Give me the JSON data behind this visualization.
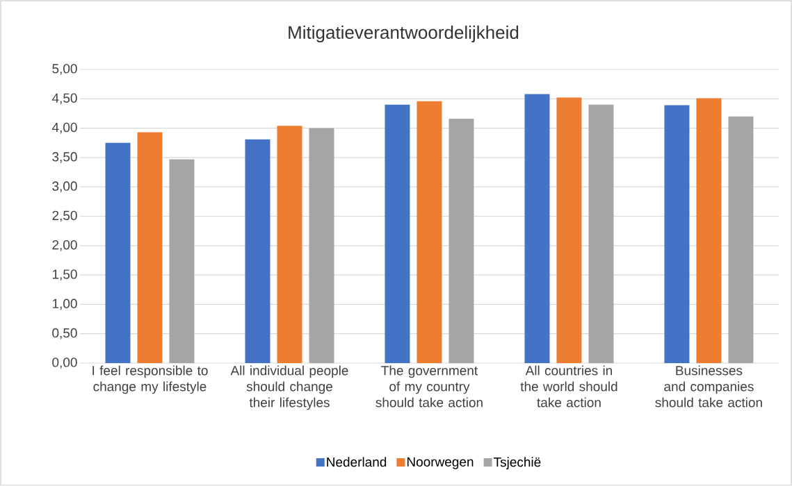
{
  "chart_data": {
    "type": "bar",
    "title": "Mitigatieverantwoordelijkheid",
    "categories": [
      "I feel responsible to change my lifestyle",
      "All individual people should change their lifestyles",
      "The government of my country should take action",
      "All countries in the world should take action",
      "Businesses and companies should take action"
    ],
    "series": [
      {
        "name": "Nederland",
        "color": "#4472c4",
        "values": [
          3.75,
          3.81,
          4.4,
          4.58,
          4.39
        ]
      },
      {
        "name": "Noorwegen",
        "color": "#ed7d31",
        "values": [
          3.93,
          4.04,
          4.46,
          4.52,
          4.51
        ]
      },
      {
        "name": "Tsjechië",
        "color": "#a5a5a5",
        "values": [
          3.47,
          4.0,
          4.16,
          4.4,
          4.2
        ]
      }
    ],
    "ylim": [
      0,
      5
    ],
    "yticks": [
      {
        "value": 0,
        "label": "0,00"
      },
      {
        "value": 0.5,
        "label": "0,50"
      },
      {
        "value": 1,
        "label": "1,00"
      },
      {
        "value": 1.5,
        "label": "1,50"
      },
      {
        "value": 2,
        "label": "2,00"
      },
      {
        "value": 2.5,
        "label": "2,50"
      },
      {
        "value": 3,
        "label": "3,00"
      },
      {
        "value": 3.5,
        "label": "3,50"
      },
      {
        "value": 4,
        "label": "4,00"
      },
      {
        "value": 4.5,
        "label": "4,50"
      },
      {
        "value": 5,
        "label": "5,00"
      }
    ],
    "grid": "y",
    "legend": "bottom"
  }
}
